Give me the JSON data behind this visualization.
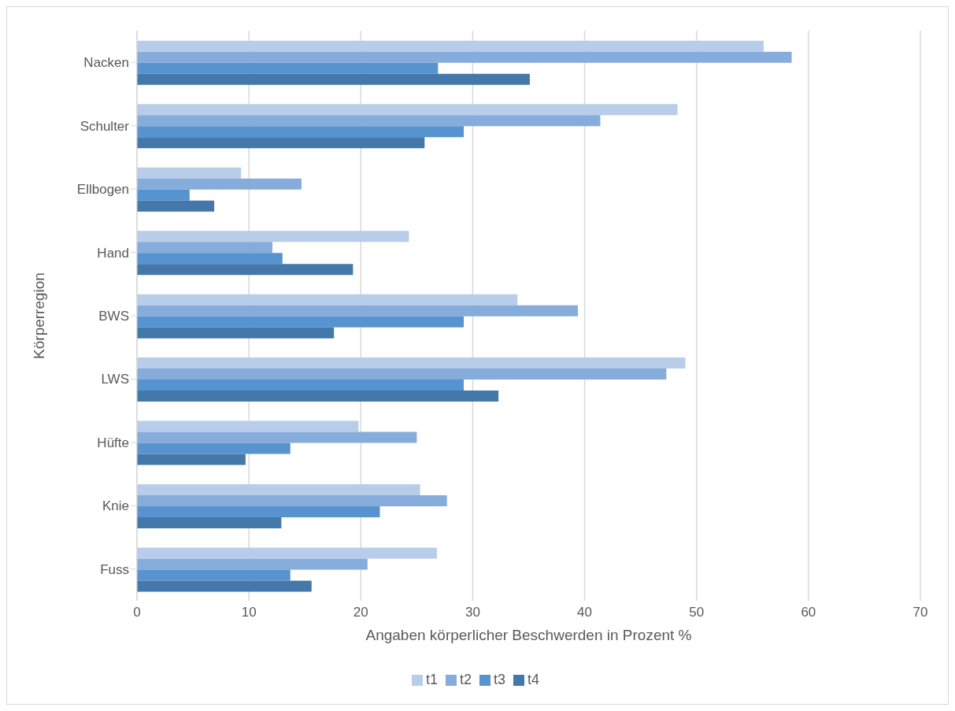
{
  "chart_data": {
    "type": "bar",
    "orientation": "horizontal",
    "xlabel": "Angaben körperlicher Beschwerden in Prozent %",
    "ylabel": "Körperregion",
    "categories": [
      "Nacken",
      "Schulter",
      "Ellbogen",
      "Hand",
      "BWS",
      "LWS",
      "Hüfte",
      "Knie",
      "Fuss"
    ],
    "series": [
      {
        "name": "t1",
        "color": "#b7cde9",
        "values": [
          56.0,
          48.3,
          9.3,
          24.3,
          34.0,
          49.0,
          19.8,
          25.3,
          26.8
        ]
      },
      {
        "name": "t2",
        "color": "#86acdc",
        "values": [
          58.5,
          41.4,
          14.7,
          12.1,
          39.4,
          47.3,
          25.0,
          27.7,
          20.6
        ]
      },
      {
        "name": "t3",
        "color": "#5793cf",
        "values": [
          26.9,
          29.2,
          4.7,
          13.0,
          29.2,
          29.2,
          13.7,
          21.7,
          13.7
        ]
      },
      {
        "name": "t4",
        "color": "#4477aa",
        "values": [
          35.1,
          25.7,
          6.9,
          19.3,
          17.6,
          32.3,
          9.7,
          12.9,
          15.6
        ]
      }
    ],
    "xlim": [
      0,
      70
    ],
    "xticks": [
      0,
      10,
      20,
      30,
      40,
      50,
      60,
      70
    ],
    "grid": "x",
    "legend": "bottom"
  }
}
